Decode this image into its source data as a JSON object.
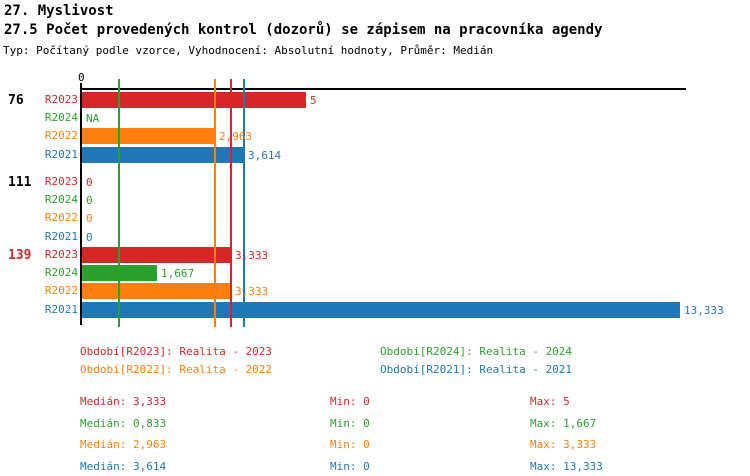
{
  "header": {
    "title_line1": "27. Myslivost",
    "title_line2": "27.5 Počet provedených kontrol (dozorů) se zápisem na pracovníka agendy",
    "subtitle": "Typ: Počítaný podle vzorce, Vyhodnocení: Absolutní hodnoty, Průměr: Medián"
  },
  "colors": {
    "r2023_red": "#d62728",
    "r2024_green": "#2ca02c",
    "r2022_orange": "#ff7f0e",
    "r2021_blue": "#1f77b4",
    "axis_black": "#000000"
  },
  "chart_data": {
    "type": "bar",
    "orientation": "horizontal",
    "title": "27.5 Počet provedených kontrol (dozorů) se zápisem na pracovníka agendy",
    "axis_zero_label": "0",
    "xlim": [
      0,
      13.5
    ],
    "grid": false,
    "groups": [
      {
        "id": "76",
        "label_color": "#000000"
      },
      {
        "id": "111",
        "label_color": "#000000"
      },
      {
        "id": "139",
        "label_color": "#d62728"
      }
    ],
    "series": [
      {
        "name": "R2023",
        "color": "#d62728",
        "values": [
          5,
          0,
          3.333
        ],
        "value_labels": [
          "5",
          "0",
          "3,333"
        ],
        "median": 3.333,
        "median_label": "Medián: 3,333",
        "min_label": "Min: 0",
        "max_label": "Max: 5"
      },
      {
        "name": "R2024",
        "color": "#2ca02c",
        "values": [
          null,
          0,
          1.667
        ],
        "value_labels": [
          "NA",
          "0",
          "1,667"
        ],
        "median": 0.833,
        "median_label": "Medián: 0,833",
        "min_label": "Min: 0",
        "max_label": "Max: 1,667"
      },
      {
        "name": "R2022",
        "color": "#ff7f0e",
        "values": [
          2.963,
          0,
          3.333
        ],
        "value_labels": [
          "2,963",
          "0",
          "3,333"
        ],
        "median": 2.963,
        "median_label": "Medián: 2,963",
        "min_label": "Min: 0",
        "max_label": "Max: 3,333"
      },
      {
        "name": "R2021",
        "color": "#1f77b4",
        "values": [
          3.614,
          0,
          13.333
        ],
        "value_labels": [
          "3,614",
          "0",
          "13,333"
        ],
        "median": 3.614,
        "median_label": "Medián: 3,614",
        "min_label": "Min: 0",
        "max_label": "Max: 13,333"
      }
    ]
  },
  "legend": {
    "items": [
      {
        "text": "Období[R2023]: Realita - 2023",
        "color": "#d62728",
        "col": 0,
        "row": 0
      },
      {
        "text": "Období[R2024]: Realita - 2024",
        "color": "#2ca02c",
        "col": 1,
        "row": 0
      },
      {
        "text": "Období[R2022]: Realita - 2022",
        "color": "#ff7f0e",
        "col": 0,
        "row": 1
      },
      {
        "text": "Období[R2021]: Realita - 2021",
        "color": "#1f77b4",
        "col": 1,
        "row": 1
      }
    ]
  },
  "stats": {
    "rows": [
      {
        "series": "R2023",
        "color": "#d62728",
        "median": "Medián: 3,333",
        "min": "Min: 0",
        "max": "Max: 5"
      },
      {
        "series": "R2024",
        "color": "#2ca02c",
        "median": "Medián: 0,833",
        "min": "Min: 0",
        "max": "Max: 1,667"
      },
      {
        "series": "R2022",
        "color": "#ff7f0e",
        "median": "Medián: 2,963",
        "min": "Min: 0",
        "max": "Max: 3,333"
      },
      {
        "series": "R2021",
        "color": "#1f77b4",
        "median": "Medián: 3,614",
        "min": "Min: 0",
        "max": "Max: 13,333"
      }
    ]
  }
}
